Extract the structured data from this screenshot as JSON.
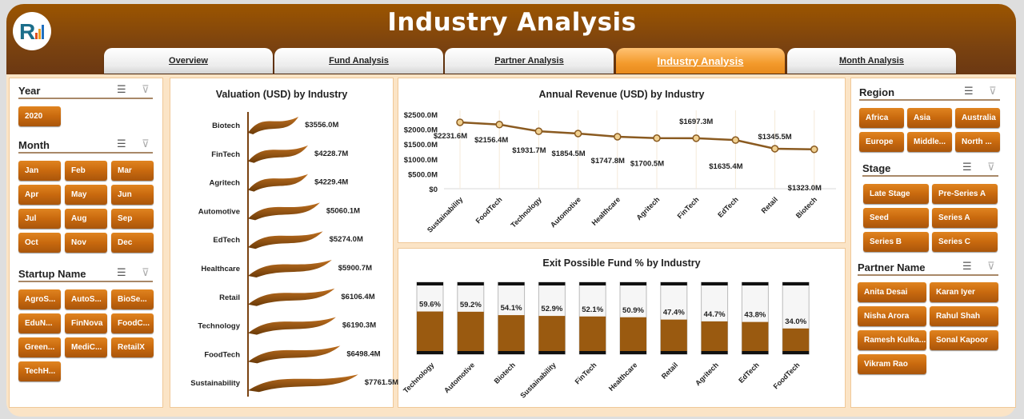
{
  "header": {
    "title": "Industry Analysis"
  },
  "tabs": [
    {
      "label": "Overview"
    },
    {
      "label": "Fund Analysis"
    },
    {
      "label": "Partner Analysis"
    },
    {
      "label": "Industry Analysis",
      "active": true
    },
    {
      "label": "Month Analysis"
    }
  ],
  "colors": {
    "brand": "#8b4a0c",
    "accent": "#f39a2c",
    "bar": "#9a5a10"
  },
  "slicers": {
    "year": {
      "title": "Year",
      "items": [
        "2020"
      ]
    },
    "month": {
      "title": "Month",
      "items": [
        "Jan",
        "Feb",
        "Mar",
        "Apr",
        "May",
        "Jun",
        "Jul",
        "Aug",
        "Sep",
        "Oct",
        "Nov",
        "Dec"
      ]
    },
    "startup": {
      "title": "Startup Name",
      "items": [
        "AgroS...",
        "AutoS...",
        "BioSe...",
        "EduN...",
        "FinNova",
        "FoodC...",
        "Green...",
        "MediC...",
        "RetailX",
        "TechH..."
      ]
    },
    "region": {
      "title": "Region",
      "items": [
        "Africa",
        "Asia",
        "Australia",
        "Europe",
        "Middle...",
        "North ..."
      ]
    },
    "stage": {
      "title": "Stage",
      "items": [
        "Late Stage",
        "Pre-Series A",
        "Seed",
        "Series A",
        "Series B",
        "Series C"
      ]
    },
    "partner": {
      "title": "Partner Name",
      "items": [
        "Anita Desai",
        "Karan Iyer",
        "Nisha Arora",
        "Rahul Shah",
        "Ramesh Kulka...",
        "Sonal Kapoor",
        "Vikram Rao"
      ]
    }
  },
  "chart_data": [
    {
      "type": "bar",
      "orientation": "horizontal",
      "title": "Valuation (USD) by Industry",
      "categories": [
        "Biotech",
        "FinTech",
        "Agritech",
        "Automotive",
        "EdTech",
        "Healthcare",
        "Retail",
        "Technology",
        "FoodTech",
        "Sustainability"
      ],
      "values": [
        3556.0,
        4228.7,
        4229.4,
        5060.1,
        5274.0,
        5900.7,
        6106.4,
        6190.3,
        6498.4,
        7761.5
      ],
      "labels": [
        "$3556.0M",
        "$4228.7M",
        "$4229.4M",
        "$5060.1M",
        "$5274.0M",
        "$5900.7M",
        "$6106.4M",
        "$6190.3M",
        "$6498.4M",
        "$7761.5M"
      ],
      "xlim": [
        0,
        8000
      ]
    },
    {
      "type": "line",
      "title": "Annual Revenue (USD) by Industry",
      "categories": [
        "Sustainability",
        "FoodTech",
        "Technology",
        "Automotive",
        "Healthcare",
        "Agritech",
        "FinTech",
        "EdTech",
        "Retail",
        "Biotech"
      ],
      "values": [
        2231.6,
        2156.4,
        1931.7,
        1854.5,
        1747.8,
        1700.5,
        1697.3,
        1635.4,
        1345.5,
        1323.0
      ],
      "labels": [
        "$2231.6M",
        "$2156.4M",
        "$1931.7M",
        "$1854.5M",
        "$1747.8M",
        "$1700.5M",
        "$1697.3M",
        "$1635.4M",
        "$1345.5M",
        "$1323.0M"
      ],
      "yticks": [
        "$0",
        "$500.0M",
        "$1000.0M",
        "$1500.0M",
        "$2000.0M",
        "$2500.0M"
      ],
      "ylim": [
        0,
        2500
      ],
      "grid": "vertical"
    },
    {
      "type": "bar",
      "title": "Exit Possible Fund % by Industry",
      "categories": [
        "Technology",
        "Automotive",
        "Biotech",
        "Sustainability",
        "FinTech",
        "Healthcare",
        "Retail",
        "Agritech",
        "EdTech",
        "FoodTech"
      ],
      "values": [
        59.6,
        59.2,
        54.1,
        52.9,
        52.1,
        50.9,
        47.4,
        44.7,
        43.8,
        34.0
      ],
      "labels": [
        "59.6%",
        "59.2%",
        "54.1%",
        "52.9%",
        "52.1%",
        "50.9%",
        "47.4%",
        "44.7%",
        "43.8%",
        "34.0%"
      ],
      "ylim": [
        0,
        100
      ]
    }
  ]
}
